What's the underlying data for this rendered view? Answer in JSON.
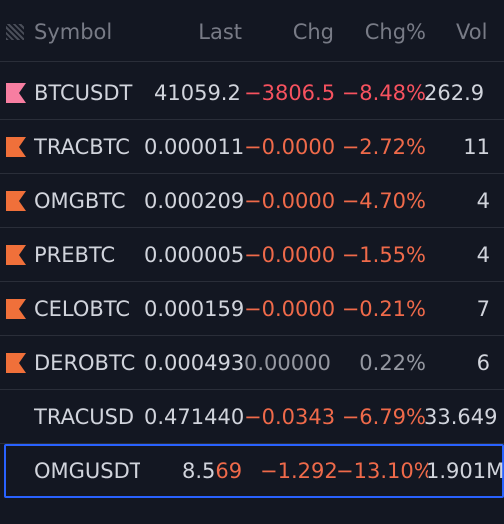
{
  "header": {
    "symbol": "Symbol",
    "last": "Last",
    "chg": "Chg",
    "chg_pct": "Chg%",
    "vol": "Vol"
  },
  "colors": {
    "background": "#131722",
    "negative": "#f7525f",
    "flag_orange": "#f0703a",
    "flag_pink": "#f77ea1",
    "selection_border": "#2962ff",
    "neutral": "#9598a1"
  },
  "rows": [
    {
      "symbol": "BTCUSDT",
      "last": "41059.2",
      "chg": "−3806.5",
      "chg_pct": "−8.48%",
      "vol": "262.9",
      "flag": "pink"
    },
    {
      "symbol": "TRACBTC",
      "last": "0.000011",
      "chg": "−0.00000",
      "chg_pct": "−2.72%",
      "vol": "11",
      "flag": "orange"
    },
    {
      "symbol": "OMGBTC",
      "last": "0.000209",
      "chg": "−0.0000",
      "chg_pct": "−4.70%",
      "vol": "4",
      "flag": "orange"
    },
    {
      "symbol": "PREBTC",
      "last": "0.000005",
      "chg": "−0.00000",
      "chg_pct": "−1.55%",
      "vol": "4",
      "flag": "orange"
    },
    {
      "symbol": "CELOBTC",
      "last": "0.000159",
      "chg": "−0.00000",
      "chg_pct": "−0.21%",
      "vol": "7",
      "flag": "orange"
    },
    {
      "symbol": "DEROBTC",
      "last": "0.000493",
      "chg": "0.00000",
      "chg_pct": "0.22%",
      "vol": "6",
      "flag": "orange"
    },
    {
      "symbol": "TRACUSD",
      "last": "0.471440",
      "chg": "−0.0343",
      "chg_pct": "−6.79%",
      "vol": "33.649",
      "flag": "none"
    },
    {
      "symbol": "OMGUSDT",
      "last_a": "8.5",
      "last_b": "69",
      "chg": "−1.292",
      "chg_pct": "−13.10%",
      "vol": "1.901M",
      "flag": "none"
    }
  ]
}
